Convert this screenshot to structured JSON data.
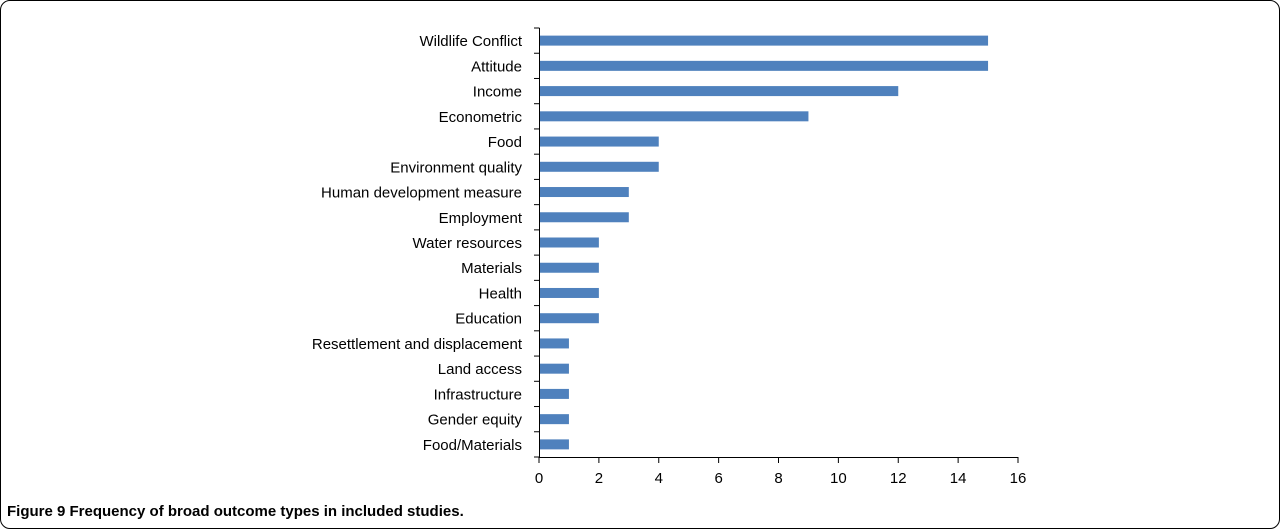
{
  "caption": "Figure 9 Frequency of broad outcome types in included studies.",
  "colors": {
    "bar": "#4f81bd",
    "axis": "#000000",
    "frame": "#000000"
  },
  "chart_data": {
    "type": "bar",
    "orientation": "horizontal",
    "categories": [
      "Wildlife Conflict",
      "Attitude",
      "Income",
      "Econometric",
      "Food",
      "Environment quality",
      "Human development measure",
      "Employment",
      "Water resources",
      "Materials",
      "Health",
      "Education",
      "Resettlement and displacement",
      "Land access",
      "Infrastructure",
      "Gender equity",
      "Food/Materials"
    ],
    "values": [
      15,
      15,
      12,
      9,
      4,
      4,
      3,
      3,
      2,
      2,
      2,
      2,
      1,
      1,
      1,
      1,
      1
    ],
    "xlim": [
      0,
      16
    ],
    "xticks": [
      0,
      2,
      4,
      6,
      8,
      10,
      12,
      14,
      16
    ],
    "title": "",
    "xlabel": "",
    "ylabel": "",
    "grid": false,
    "legend": "none"
  }
}
